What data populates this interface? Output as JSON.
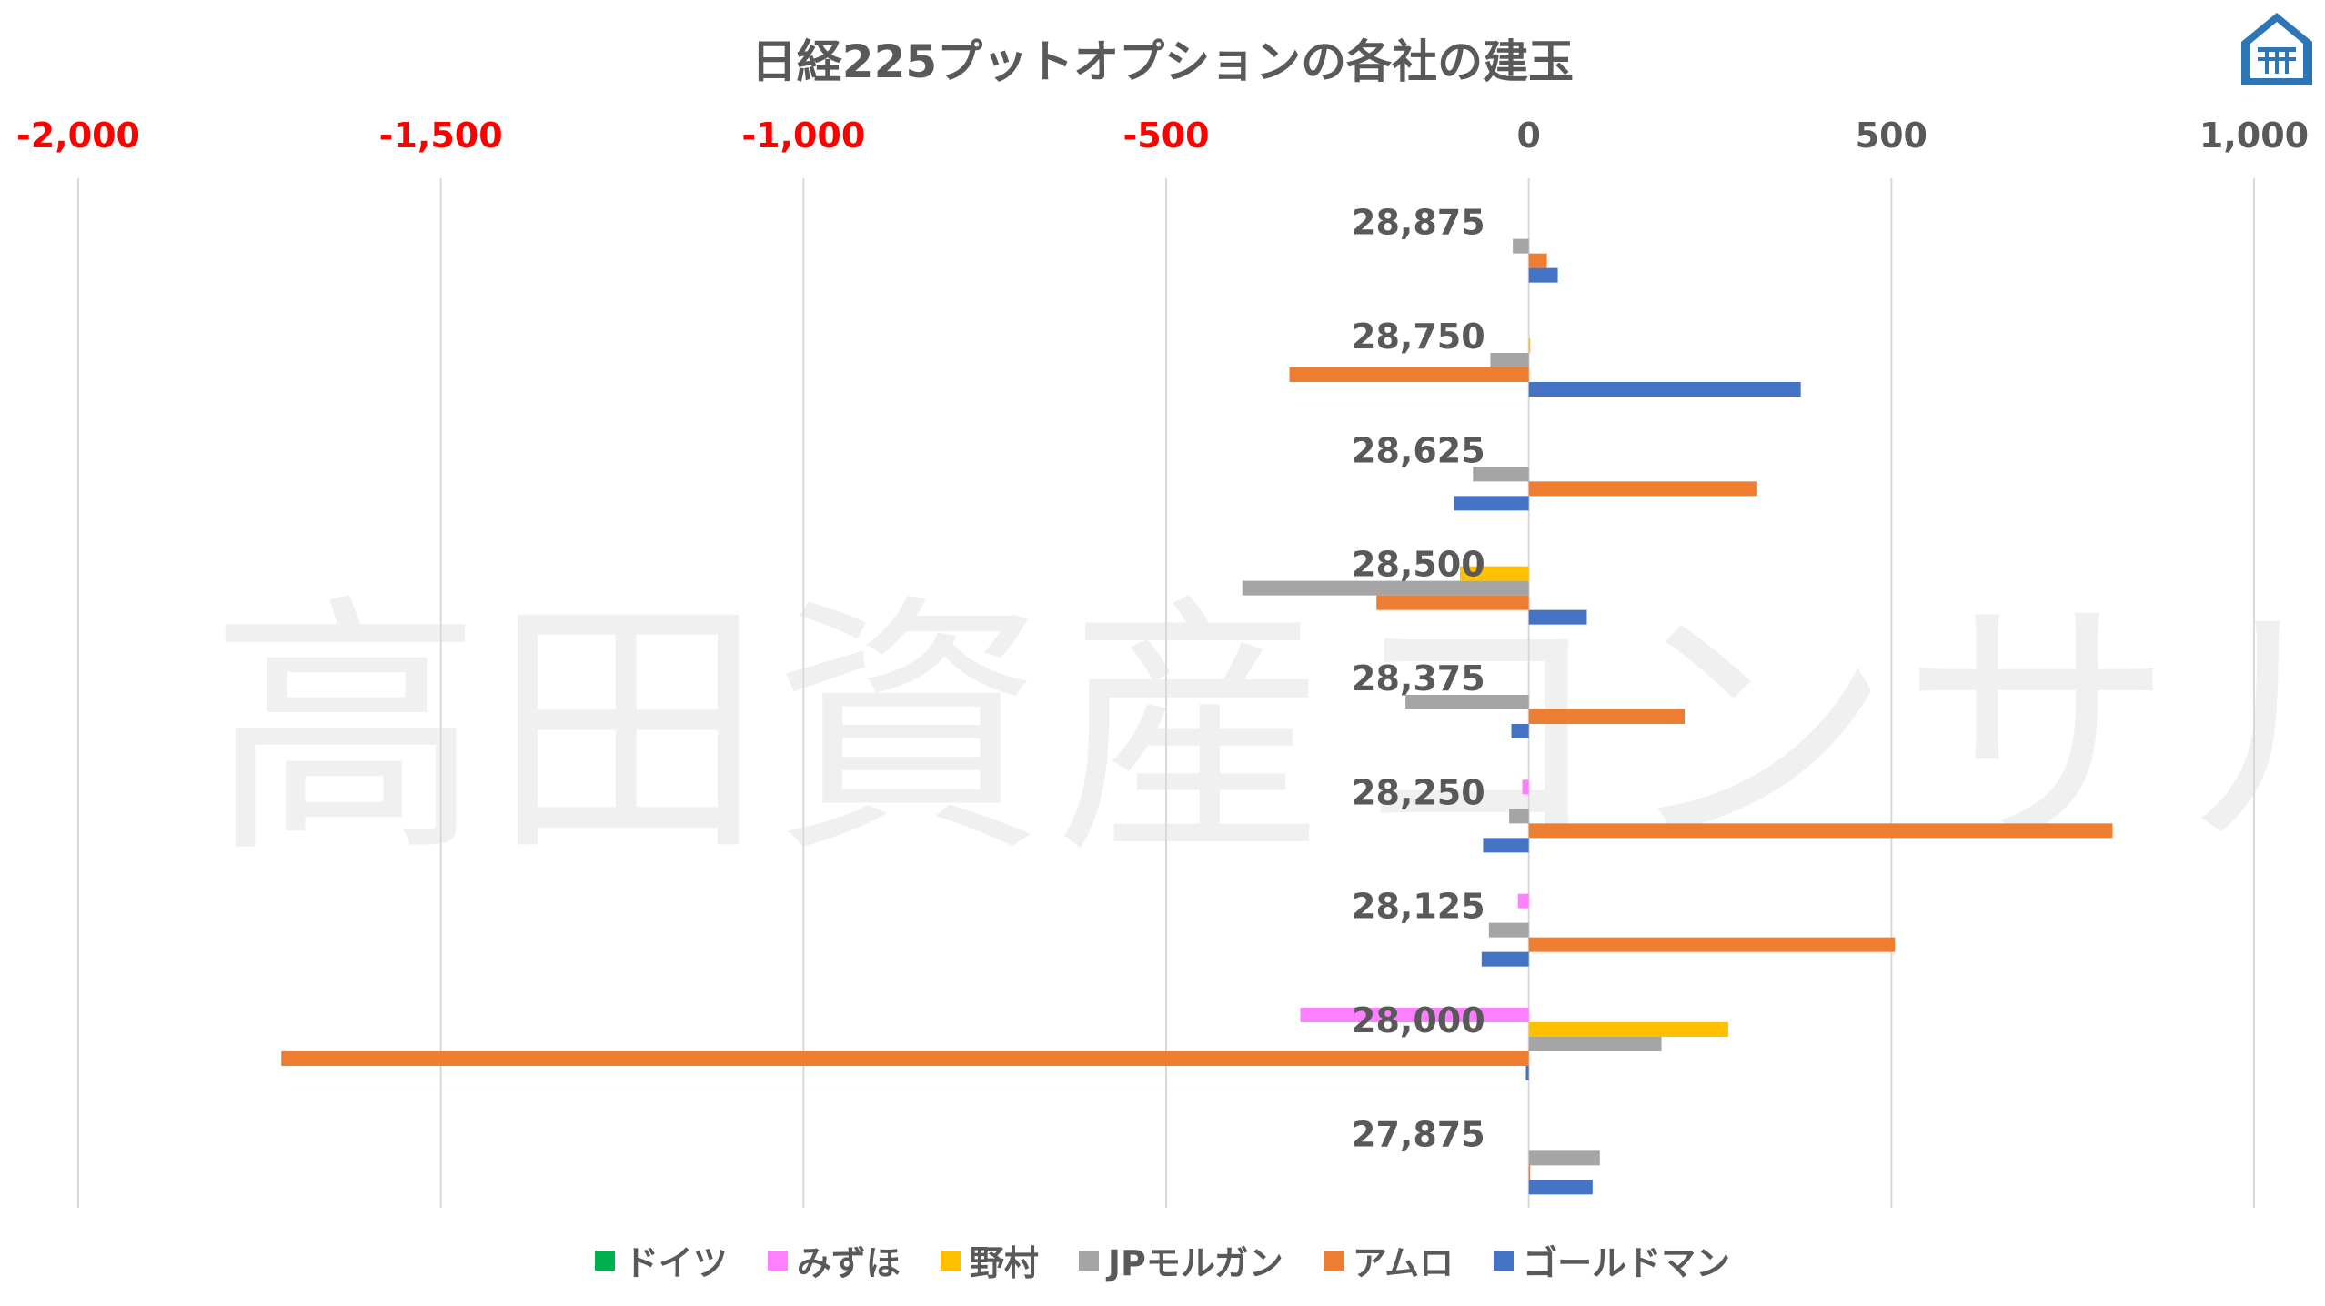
{
  "chart_data": {
    "type": "bar",
    "orientation": "horizontal",
    "title": "日経225プットオプションの各社の建玉",
    "watermark": "高田資産コンサル",
    "xlim": [
      -2000,
      1000
    ],
    "xticks": [
      -2000,
      -1500,
      -1000,
      -500,
      0,
      500,
      1000
    ],
    "xtick_labels": [
      "-2,000",
      "-1,500",
      "-1,000",
      "-500",
      "0",
      "500",
      "1,000"
    ],
    "negative_tick_color": "#FF0000",
    "tick_color": "#595959",
    "grid": true,
    "legend_position": "bottom",
    "categories": [
      "28,875",
      "28,750",
      "28,625",
      "28,500",
      "28,375",
      "28,250",
      "28,125",
      "28,000",
      "27,875"
    ],
    "series": [
      {
        "name": "ドイツ",
        "color": "#00B050",
        "values": [
          0,
          0,
          0,
          0,
          0,
          0,
          0,
          0,
          0
        ]
      },
      {
        "name": "みずほ",
        "color": "#FF80FF",
        "values": [
          0,
          0,
          0,
          0,
          0,
          -9,
          -15,
          -315,
          0
        ]
      },
      {
        "name": "野村",
        "color": "#FFC000",
        "values": [
          0,
          2,
          0,
          -95,
          0,
          0,
          0,
          275,
          0
        ]
      },
      {
        "name": "JPモルガン",
        "color": "#A5A5A5",
        "values": [
          -22,
          -53,
          -77,
          -395,
          -170,
          -27,
          -55,
          183,
          98
        ]
      },
      {
        "name": "アムロ",
        "color": "#ED7D31",
        "values": [
          25,
          -330,
          315,
          -210,
          215,
          805,
          505,
          -1720,
          2
        ]
      },
      {
        "name": "ゴールドマン",
        "color": "#4472C4",
        "values": [
          40,
          375,
          -103,
          80,
          -24,
          -63,
          -65,
          -4,
          88
        ]
      }
    ]
  }
}
